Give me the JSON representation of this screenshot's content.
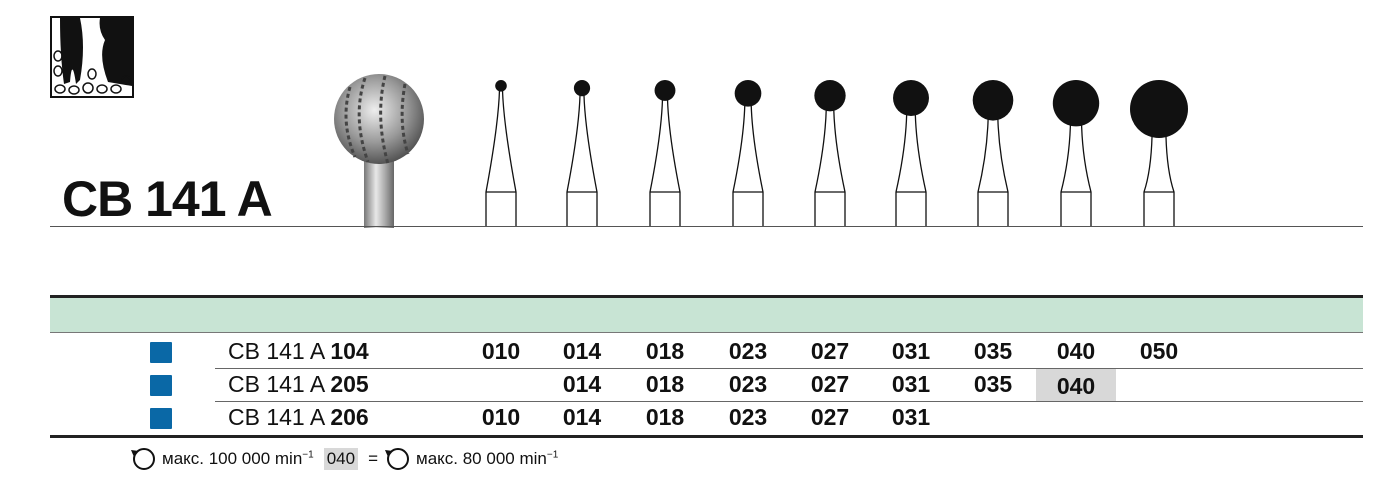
{
  "product": {
    "title": "CB 141 A"
  },
  "sizes": [
    "010",
    "014",
    "018",
    "023",
    "027",
    "031",
    "035",
    "040",
    "050"
  ],
  "table": {
    "rows": [
      {
        "prefix": "CB 141 A",
        "code": "104",
        "sizes": [
          "010",
          "014",
          "018",
          "023",
          "027",
          "031",
          "035",
          "040",
          "050"
        ],
        "highlight": []
      },
      {
        "prefix": "CB 141 A",
        "code": "205",
        "sizes": [
          "",
          "014",
          "018",
          "023",
          "027",
          "031",
          "035",
          "040",
          ""
        ],
        "highlight": [
          "040"
        ]
      },
      {
        "prefix": "CB 141 A",
        "code": "206",
        "sizes": [
          "010",
          "014",
          "018",
          "023",
          "027",
          "031",
          "",
          "",
          ""
        ],
        "highlight": []
      }
    ],
    "marker_color": "#0a68a6",
    "header_band_color": "#c8e4d4",
    "highlight_color": "#d8d8d8"
  },
  "footer": {
    "speed_default": "макс. 100 000 min",
    "exp": "−1",
    "highlight_size": "040",
    "equals": "=",
    "speed_highlight": "макс. 80 000 min"
  },
  "icons": {
    "logo": "tooth-bone-pictogram",
    "rotation": "rotation-arrow-icon"
  }
}
